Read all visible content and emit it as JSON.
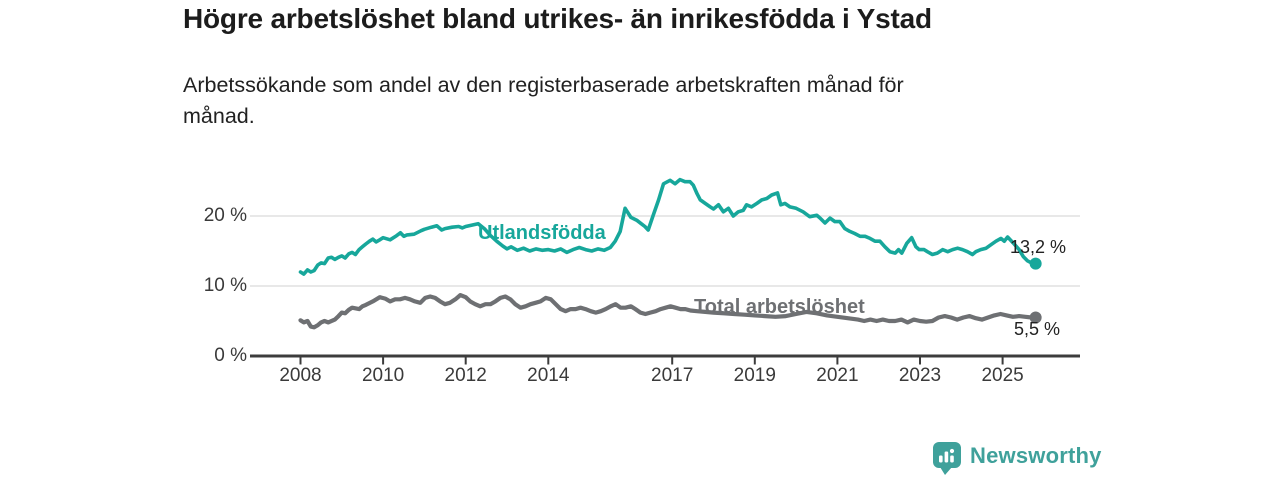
{
  "title": "Högre arbetslöshet bland utrikes- än inrikesfödda i Ystad",
  "subtitle_lines": [
    "Arbetssökande som andel av den registerbaserade arbetskraften månad för",
    "månad."
  ],
  "branding": {
    "name": "Newsworthy",
    "color": "#3FA19B",
    "icon": "newsworthy-bars-pin-icon"
  },
  "chart_data": {
    "type": "line",
    "title": "Högre arbetslöshet bland utrikes- än inrikesfödda i Ystad",
    "subtitle": "Arbetssökande som andel av den registerbaserade arbetskraften månad för månad.",
    "xlabel": "",
    "ylabel": "",
    "grid": "horizontal",
    "x_axis": {
      "tick_years": [
        2008,
        2010,
        2012,
        2014,
        2017,
        2019,
        2021,
        2023,
        2025
      ],
      "tick_labels": [
        "2008",
        "2010",
        "2012",
        "2014",
        "2017",
        "2019",
        "2021",
        "2023",
        "2025"
      ],
      "range": [
        2007.8,
        2026.2
      ]
    },
    "y_axis": {
      "ticks": [
        0,
        10,
        20
      ],
      "labels": [
        "0 %",
        "10 %",
        "20 %"
      ],
      "range": [
        0,
        27
      ]
    },
    "style": {
      "grid_color": "#e1e1e1",
      "axis_color": "#3c3c3c"
    },
    "series": [
      {
        "name": "Utlandsfödda",
        "color": "#17A79B",
        "width": 3.6,
        "end_label": "13,2 %",
        "end_value": 13.2,
        "points": [
          [
            2008.0,
            12.0
          ],
          [
            2008.08,
            11.7
          ],
          [
            2008.17,
            12.3
          ],
          [
            2008.25,
            12.0
          ],
          [
            2008.33,
            12.2
          ],
          [
            2008.42,
            13.0
          ],
          [
            2008.5,
            13.3
          ],
          [
            2008.58,
            13.2
          ],
          [
            2008.67,
            14.0
          ],
          [
            2008.75,
            14.1
          ],
          [
            2008.83,
            13.8
          ],
          [
            2008.92,
            14.1
          ],
          [
            2009.0,
            14.3
          ],
          [
            2009.08,
            14.0
          ],
          [
            2009.17,
            14.6
          ],
          [
            2009.25,
            14.8
          ],
          [
            2009.33,
            14.5
          ],
          [
            2009.42,
            15.2
          ],
          [
            2009.5,
            15.6
          ],
          [
            2009.58,
            16.0
          ],
          [
            2009.67,
            16.4
          ],
          [
            2009.75,
            16.7
          ],
          [
            2009.83,
            16.3
          ],
          [
            2009.92,
            16.6
          ],
          [
            2010.0,
            16.9
          ],
          [
            2010.17,
            16.6
          ],
          [
            2010.33,
            17.2
          ],
          [
            2010.42,
            17.6
          ],
          [
            2010.5,
            17.1
          ],
          [
            2010.58,
            17.3
          ],
          [
            2010.75,
            17.4
          ],
          [
            2010.92,
            17.9
          ],
          [
            2011.0,
            18.1
          ],
          [
            2011.17,
            18.4
          ],
          [
            2011.3,
            18.6
          ],
          [
            2011.42,
            18.0
          ],
          [
            2011.5,
            18.2
          ],
          [
            2011.67,
            18.4
          ],
          [
            2011.83,
            18.5
          ],
          [
            2011.92,
            18.3
          ],
          [
            2012.0,
            18.5
          ],
          [
            2012.15,
            18.7
          ],
          [
            2012.3,
            18.9
          ],
          [
            2012.45,
            18.2
          ],
          [
            2012.6,
            17.2
          ],
          [
            2012.75,
            16.4
          ],
          [
            2012.9,
            15.7
          ],
          [
            2013.0,
            15.3
          ],
          [
            2013.1,
            15.6
          ],
          [
            2013.25,
            15.1
          ],
          [
            2013.4,
            15.4
          ],
          [
            2013.55,
            15.0
          ],
          [
            2013.7,
            15.3
          ],
          [
            2013.85,
            15.1
          ],
          [
            2014.0,
            15.2
          ],
          [
            2014.15,
            15.0
          ],
          [
            2014.3,
            15.3
          ],
          [
            2014.45,
            14.8
          ],
          [
            2014.6,
            15.2
          ],
          [
            2014.75,
            15.5
          ],
          [
            2014.9,
            15.2
          ],
          [
            2015.05,
            15.0
          ],
          [
            2015.2,
            15.3
          ],
          [
            2015.35,
            15.1
          ],
          [
            2015.5,
            15.5
          ],
          [
            2015.62,
            16.4
          ],
          [
            2015.74,
            17.8
          ],
          [
            2015.86,
            21.1
          ],
          [
            2016.0,
            19.8
          ],
          [
            2016.14,
            19.4
          ],
          [
            2016.25,
            18.9
          ],
          [
            2016.34,
            18.5
          ],
          [
            2016.42,
            18.0
          ],
          [
            2016.54,
            20.1
          ],
          [
            2016.67,
            22.3
          ],
          [
            2016.79,
            24.6
          ],
          [
            2016.95,
            25.1
          ],
          [
            2017.07,
            24.6
          ],
          [
            2017.19,
            25.2
          ],
          [
            2017.31,
            24.9
          ],
          [
            2017.43,
            24.9
          ],
          [
            2017.51,
            24.4
          ],
          [
            2017.6,
            23.2
          ],
          [
            2017.68,
            22.3
          ],
          [
            2017.8,
            21.8
          ],
          [
            2017.92,
            21.3
          ],
          [
            2018.0,
            21.0
          ],
          [
            2018.12,
            21.6
          ],
          [
            2018.24,
            20.6
          ],
          [
            2018.36,
            21.1
          ],
          [
            2018.48,
            20.0
          ],
          [
            2018.6,
            20.6
          ],
          [
            2018.72,
            20.8
          ],
          [
            2018.8,
            21.6
          ],
          [
            2018.92,
            21.3
          ],
          [
            2019.05,
            21.8
          ],
          [
            2019.17,
            22.3
          ],
          [
            2019.29,
            22.5
          ],
          [
            2019.41,
            23.0
          ],
          [
            2019.55,
            23.3
          ],
          [
            2019.63,
            21.6
          ],
          [
            2019.73,
            21.8
          ],
          [
            2019.85,
            21.3
          ],
          [
            2020.0,
            21.1
          ],
          [
            2020.17,
            20.6
          ],
          [
            2020.33,
            19.9
          ],
          [
            2020.5,
            20.1
          ],
          [
            2020.58,
            19.7
          ],
          [
            2020.7,
            19.0
          ],
          [
            2020.82,
            19.7
          ],
          [
            2020.94,
            19.2
          ],
          [
            2021.06,
            19.2
          ],
          [
            2021.18,
            18.2
          ],
          [
            2021.3,
            17.8
          ],
          [
            2021.42,
            17.5
          ],
          [
            2021.55,
            17.1
          ],
          [
            2021.67,
            17.1
          ],
          [
            2021.79,
            16.8
          ],
          [
            2021.91,
            16.4
          ],
          [
            2022.03,
            16.4
          ],
          [
            2022.15,
            15.6
          ],
          [
            2022.27,
            14.9
          ],
          [
            2022.4,
            14.7
          ],
          [
            2022.48,
            15.2
          ],
          [
            2022.56,
            14.7
          ],
          [
            2022.68,
            16.1
          ],
          [
            2022.8,
            16.9
          ],
          [
            2022.9,
            15.6
          ],
          [
            2022.98,
            15.2
          ],
          [
            2023.1,
            15.2
          ],
          [
            2023.18,
            14.9
          ],
          [
            2023.3,
            14.5
          ],
          [
            2023.42,
            14.7
          ],
          [
            2023.55,
            15.2
          ],
          [
            2023.67,
            14.9
          ],
          [
            2023.79,
            15.2
          ],
          [
            2023.91,
            15.4
          ],
          [
            2024.03,
            15.2
          ],
          [
            2024.15,
            14.9
          ],
          [
            2024.27,
            14.5
          ],
          [
            2024.35,
            14.9
          ],
          [
            2024.47,
            15.2
          ],
          [
            2024.6,
            15.4
          ],
          [
            2024.72,
            15.9
          ],
          [
            2024.84,
            16.4
          ],
          [
            2024.96,
            16.8
          ],
          [
            2025.04,
            16.4
          ],
          [
            2025.12,
            17.0
          ],
          [
            2025.25,
            16.2
          ],
          [
            2025.4,
            15.2
          ],
          [
            2025.5,
            14.2
          ],
          [
            2025.6,
            13.6
          ],
          [
            2025.7,
            13.3
          ],
          [
            2025.8,
            13.2
          ]
        ]
      },
      {
        "name": "Total arbetslöshet",
        "color": "#6E7073",
        "width": 4.2,
        "end_label": "5,5 %",
        "end_value": 5.5,
        "points": [
          [
            2008.0,
            5.1
          ],
          [
            2008.08,
            4.8
          ],
          [
            2008.17,
            5.0
          ],
          [
            2008.25,
            4.2
          ],
          [
            2008.33,
            4.1
          ],
          [
            2008.42,
            4.4
          ],
          [
            2008.5,
            4.8
          ],
          [
            2008.58,
            5.0
          ],
          [
            2008.67,
            4.8
          ],
          [
            2008.83,
            5.2
          ],
          [
            2008.92,
            5.7
          ],
          [
            2009.0,
            6.2
          ],
          [
            2009.08,
            6.1
          ],
          [
            2009.17,
            6.6
          ],
          [
            2009.25,
            6.9
          ],
          [
            2009.42,
            6.7
          ],
          [
            2009.5,
            7.1
          ],
          [
            2009.58,
            7.3
          ],
          [
            2009.75,
            7.8
          ],
          [
            2009.92,
            8.4
          ],
          [
            2010.05,
            8.2
          ],
          [
            2010.17,
            7.8
          ],
          [
            2010.29,
            8.1
          ],
          [
            2010.41,
            8.1
          ],
          [
            2010.53,
            8.3
          ],
          [
            2010.65,
            8.1
          ],
          [
            2010.77,
            7.8
          ],
          [
            2010.9,
            7.6
          ],
          [
            2011.02,
            8.3
          ],
          [
            2011.14,
            8.5
          ],
          [
            2011.26,
            8.3
          ],
          [
            2011.38,
            7.8
          ],
          [
            2011.5,
            7.4
          ],
          [
            2011.62,
            7.6
          ],
          [
            2011.75,
            8.1
          ],
          [
            2011.87,
            8.7
          ],
          [
            2012.0,
            8.4
          ],
          [
            2012.11,
            7.8
          ],
          [
            2012.23,
            7.4
          ],
          [
            2012.35,
            7.1
          ],
          [
            2012.48,
            7.4
          ],
          [
            2012.6,
            7.4
          ],
          [
            2012.72,
            7.8
          ],
          [
            2012.84,
            8.3
          ],
          [
            2012.96,
            8.5
          ],
          [
            2013.08,
            8.1
          ],
          [
            2013.2,
            7.4
          ],
          [
            2013.33,
            6.9
          ],
          [
            2013.45,
            7.1
          ],
          [
            2013.57,
            7.4
          ],
          [
            2013.69,
            7.6
          ],
          [
            2013.81,
            7.8
          ],
          [
            2013.94,
            8.3
          ],
          [
            2014.06,
            8.1
          ],
          [
            2014.18,
            7.4
          ],
          [
            2014.3,
            6.7
          ],
          [
            2014.42,
            6.4
          ],
          [
            2014.54,
            6.7
          ],
          [
            2014.66,
            6.7
          ],
          [
            2014.78,
            6.9
          ],
          [
            2014.9,
            6.7
          ],
          [
            2015.03,
            6.4
          ],
          [
            2015.15,
            6.2
          ],
          [
            2015.27,
            6.4
          ],
          [
            2015.39,
            6.7
          ],
          [
            2015.51,
            7.1
          ],
          [
            2015.63,
            7.4
          ],
          [
            2015.75,
            6.9
          ],
          [
            2015.87,
            6.9
          ],
          [
            2016.0,
            7.1
          ],
          [
            2016.11,
            6.7
          ],
          [
            2016.23,
            6.2
          ],
          [
            2016.35,
            6.0
          ],
          [
            2016.47,
            6.2
          ],
          [
            2016.6,
            6.4
          ],
          [
            2016.72,
            6.7
          ],
          [
            2016.84,
            6.9
          ],
          [
            2016.96,
            7.1
          ],
          [
            2017.08,
            6.9
          ],
          [
            2017.2,
            6.7
          ],
          [
            2017.32,
            6.7
          ],
          [
            2017.44,
            6.5
          ],
          [
            2017.6,
            6.4
          ],
          [
            2017.8,
            6.3
          ],
          [
            2018.0,
            6.2
          ],
          [
            2018.25,
            6.1
          ],
          [
            2018.5,
            6.0
          ],
          [
            2018.75,
            5.9
          ],
          [
            2019.0,
            5.8
          ],
          [
            2019.25,
            5.7
          ],
          [
            2019.5,
            5.6
          ],
          [
            2019.75,
            5.7
          ],
          [
            2020.0,
            6.0
          ],
          [
            2020.25,
            6.3
          ],
          [
            2020.5,
            6.1
          ],
          [
            2020.75,
            5.8
          ],
          [
            2021.0,
            5.6
          ],
          [
            2021.25,
            5.4
          ],
          [
            2021.5,
            5.2
          ],
          [
            2021.65,
            5.0
          ],
          [
            2021.8,
            5.2
          ],
          [
            2021.95,
            5.0
          ],
          [
            2022.1,
            5.2
          ],
          [
            2022.25,
            5.0
          ],
          [
            2022.4,
            5.0
          ],
          [
            2022.55,
            5.2
          ],
          [
            2022.7,
            4.8
          ],
          [
            2022.85,
            5.2
          ],
          [
            2023.0,
            5.0
          ],
          [
            2023.15,
            4.9
          ],
          [
            2023.3,
            5.0
          ],
          [
            2023.45,
            5.5
          ],
          [
            2023.6,
            5.7
          ],
          [
            2023.75,
            5.5
          ],
          [
            2023.9,
            5.2
          ],
          [
            2024.05,
            5.5
          ],
          [
            2024.2,
            5.7
          ],
          [
            2024.35,
            5.4
          ],
          [
            2024.5,
            5.2
          ],
          [
            2024.65,
            5.5
          ],
          [
            2024.8,
            5.8
          ],
          [
            2024.95,
            6.0
          ],
          [
            2025.1,
            5.8
          ],
          [
            2025.25,
            5.6
          ],
          [
            2025.4,
            5.7
          ],
          [
            2025.55,
            5.6
          ],
          [
            2025.7,
            5.5
          ],
          [
            2025.8,
            5.5
          ]
        ]
      }
    ]
  }
}
